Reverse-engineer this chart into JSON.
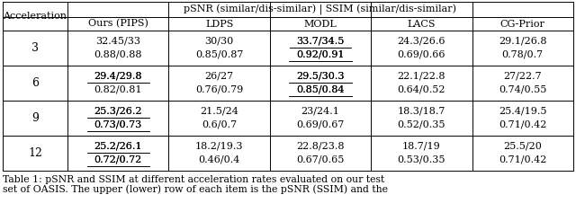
{
  "title_row": "pSNR (similar/dis-similar) | SSIM (similar/dis-similar)",
  "col_headers": [
    "Ours (PIPS)",
    "LDPS",
    "MODL",
    "LACS",
    "CG-Prior"
  ],
  "row_headers": [
    "3",
    "6",
    "9",
    "12"
  ],
  "cells": {
    "3": [
      [
        [
          "32.45/33",
          false
        ],
        [
          "30/30",
          false
        ],
        [
          "33.7/34.5",
          true
        ],
        [
          "24.3/26.6",
          false
        ],
        [
          "29.1/26.8",
          false
        ]
      ],
      [
        [
          "0.88/0.88",
          false
        ],
        [
          "0.85/0.87",
          false
        ],
        [
          "0.92/0.91",
          true
        ],
        [
          "0.69/0.66",
          false
        ],
        [
          "0.78/0.7",
          false
        ]
      ]
    ],
    "6": [
      [
        [
          "29.4/29.8",
          true
        ],
        [
          "26/27",
          false
        ],
        [
          "29.5/30.3",
          true
        ],
        [
          "22.1/22.8",
          false
        ],
        [
          "27/22.7",
          false
        ]
      ],
      [
        [
          "0.82/0.81",
          false
        ],
        [
          "0.76/0.79",
          false
        ],
        [
          "0.85/0.84",
          true
        ],
        [
          "0.64/0.52",
          false
        ],
        [
          "0.74/0.55",
          false
        ]
      ]
    ],
    "9": [
      [
        [
          "25.3/26.2",
          true
        ],
        [
          "21.5/24",
          false
        ],
        [
          "23/24.1",
          false
        ],
        [
          "18.3/18.7",
          false
        ],
        [
          "25.4/19.5",
          false
        ]
      ],
      [
        [
          "0.73/0.73",
          true
        ],
        [
          "0.6/0.7",
          false
        ],
        [
          "0.69/0.67",
          false
        ],
        [
          "0.52/0.35",
          false
        ],
        [
          "0.71/0.42",
          false
        ]
      ]
    ],
    "12": [
      [
        [
          "25.2/26.1",
          true
        ],
        [
          "18.2/19.3",
          false
        ],
        [
          "22.8/23.8",
          false
        ],
        [
          "18.7/19",
          false
        ],
        [
          "25.5/20",
          false
        ]
      ],
      [
        [
          "0.72/0.72",
          true
        ],
        [
          "0.46/0.4",
          false
        ],
        [
          "0.67/0.65",
          false
        ],
        [
          "0.53/0.35",
          false
        ],
        [
          "0.71/0.42",
          false
        ]
      ]
    ]
  },
  "caption_line1": "Table 1: pSNR and SSIM at different acceleration rates evaluated on our test",
  "caption_line2": "set of OASIS. The upper (lower) row of each item is the pSNR (SSIM) and the",
  "bg_color": "#ffffff",
  "text_color": "#000000",
  "font_size": 8.0,
  "caption_font_size": 7.8,
  "lw": 0.7
}
